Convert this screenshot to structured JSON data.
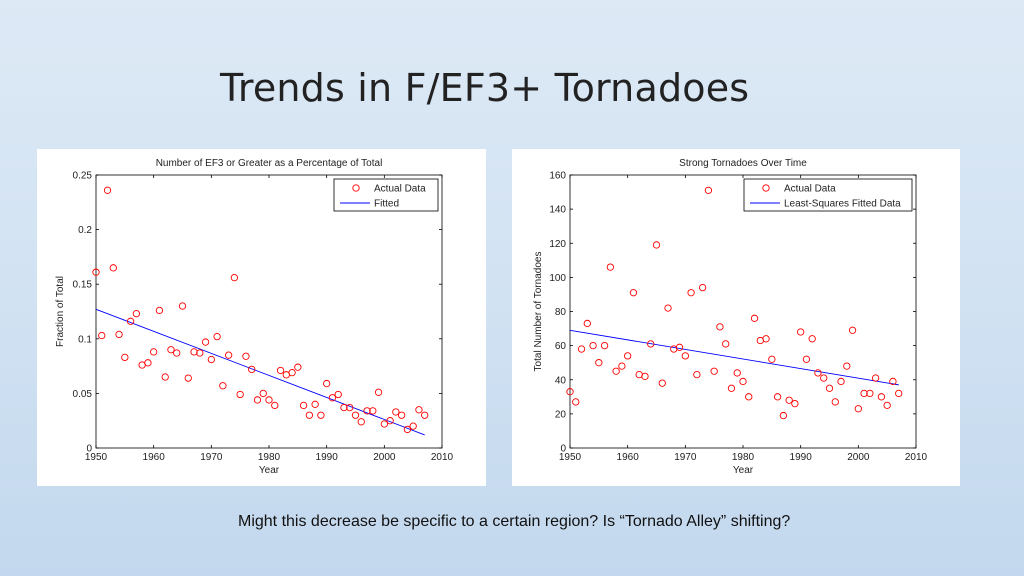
{
  "slide": {
    "title": "Trends in F/EF3+ Tornadoes",
    "caption": "Might this decrease be specific to a certain region? Is “Tornado Alley” shifting?"
  },
  "chart_data": [
    {
      "type": "scatter",
      "title": "Number of EF3 or Greater as a Percentage of Total",
      "xlabel": "Year",
      "ylabel": "Fraction of Total",
      "xlim": [
        1950,
        2010
      ],
      "ylim": [
        0,
        0.25
      ],
      "xticks": [
        1950,
        1960,
        1970,
        1980,
        1990,
        2000,
        2010
      ],
      "yticks": [
        0,
        0.05,
        0.1,
        0.15,
        0.2,
        0.25
      ],
      "ytick_labels": [
        "0",
        "0.05",
        "0.1",
        "0.15",
        "0.2",
        "0.25"
      ],
      "grid": false,
      "legend_position": "top-right",
      "legend": [
        "Actual Data",
        "Fitted"
      ],
      "marker_color": "#ff0000",
      "line_color": "#0000ff",
      "series": [
        {
          "name": "Actual Data",
          "x": [
            1950,
            1951,
            1952,
            1953,
            1954,
            1955,
            1956,
            1957,
            1958,
            1959,
            1960,
            1961,
            1962,
            1963,
            1964,
            1965,
            1966,
            1967,
            1968,
            1969,
            1970,
            1971,
            1972,
            1973,
            1974,
            1975,
            1976,
            1977,
            1978,
            1979,
            1980,
            1981,
            1982,
            1983,
            1984,
            1985,
            1986,
            1987,
            1988,
            1989,
            1990,
            1991,
            1992,
            1993,
            1994,
            1995,
            1996,
            1997,
            1998,
            1999,
            2000,
            2001,
            2002,
            2003,
            2004,
            2005,
            2006,
            2007
          ],
          "y": [
            0.161,
            0.103,
            0.236,
            0.165,
            0.104,
            0.083,
            0.116,
            0.123,
            0.076,
            0.078,
            0.088,
            0.126,
            0.065,
            0.09,
            0.087,
            0.13,
            0.064,
            0.088,
            0.087,
            0.097,
            0.081,
            0.102,
            0.057,
            0.085,
            0.156,
            0.049,
            0.084,
            0.072,
            0.044,
            0.05,
            0.044,
            0.039,
            0.071,
            0.067,
            0.069,
            0.074,
            0.039,
            0.03,
            0.04,
            0.03,
            0.059,
            0.046,
            0.049,
            0.037,
            0.037,
            0.03,
            0.024,
            0.034,
            0.034,
            0.051,
            0.022,
            0.025,
            0.033,
            0.03,
            0.017,
            0.02,
            0.035,
            0.03
          ]
        },
        {
          "name": "Fitted",
          "x": [
            1950,
            2007
          ],
          "y": [
            0.127,
            0.012
          ]
        }
      ]
    },
    {
      "type": "scatter",
      "title": "Strong Tornadoes Over Time",
      "xlabel": "Year",
      "ylabel": "Total Number of Tornadoes",
      "xlim": [
        1950,
        2010
      ],
      "ylim": [
        0,
        160
      ],
      "xticks": [
        1950,
        1960,
        1970,
        1980,
        1990,
        2000,
        2010
      ],
      "yticks": [
        0,
        20,
        40,
        60,
        80,
        100,
        120,
        140,
        160
      ],
      "ytick_labels": [
        "0",
        "20",
        "40",
        "60",
        "80",
        "100",
        "120",
        "140",
        "160"
      ],
      "grid": false,
      "legend_position": "top-right",
      "legend": [
        "Actual Data",
        "Least-Squares Fitted Data"
      ],
      "marker_color": "#ff0000",
      "line_color": "#0000ff",
      "series": [
        {
          "name": "Actual Data",
          "x": [
            1950,
            1951,
            1952,
            1953,
            1954,
            1955,
            1956,
            1957,
            1958,
            1959,
            1960,
            1961,
            1962,
            1963,
            1964,
            1965,
            1966,
            1967,
            1968,
            1969,
            1970,
            1971,
            1972,
            1973,
            1974,
            1975,
            1976,
            1977,
            1978,
            1979,
            1980,
            1981,
            1982,
            1983,
            1984,
            1985,
            1986,
            1987,
            1988,
            1989,
            1990,
            1991,
            1992,
            1993,
            1994,
            1995,
            1996,
            1997,
            1998,
            1999,
            2000,
            2001,
            2002,
            2003,
            2004,
            2005,
            2006,
            2007
          ],
          "y": [
            33,
            27,
            58,
            73,
            60,
            50,
            60,
            106,
            45,
            48,
            54,
            91,
            43,
            42,
            61,
            119,
            38,
            82,
            58,
            59,
            54,
            91,
            43,
            94,
            151,
            45,
            71,
            61,
            35,
            44,
            39,
            30,
            76,
            63,
            64,
            52,
            30,
            19,
            28,
            26,
            68,
            52,
            64,
            44,
            41,
            35,
            27,
            39,
            48,
            69,
            23,
            32,
            32,
            41,
            30,
            25,
            39,
            32
          ]
        },
        {
          "name": "Least-Squares Fitted Data",
          "x": [
            1950,
            2007
          ],
          "y": [
            69,
            37
          ]
        }
      ]
    }
  ]
}
